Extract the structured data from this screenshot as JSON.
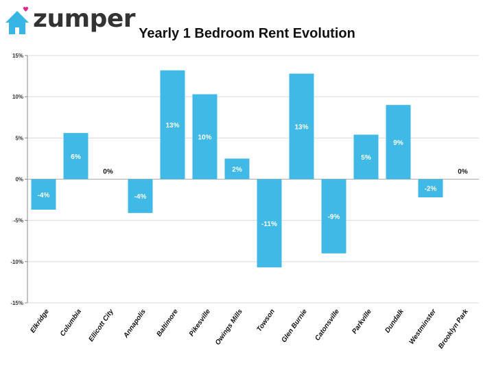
{
  "logo": {
    "text": "zumper",
    "icon": "house-heart-icon",
    "heart_color": "#e0288a",
    "house_color": "#37b6e5"
  },
  "chart_data": {
    "type": "bar",
    "title": "Yearly 1 Bedroom Rent Evolution",
    "xlabel": "",
    "ylabel": "",
    "categories": [
      "Elkridge",
      "Columbia",
      "Ellicott City",
      "Annapolis",
      "Baltimore",
      "Pikesville",
      "Owings Mills",
      "Towson",
      "Glen Burnie",
      "Catonsville",
      "Parkville",
      "Dundalk",
      "Westminster",
      "Brooklyn Park"
    ],
    "values": [
      -3.7,
      5.6,
      0,
      -4.1,
      13.2,
      10.3,
      2.5,
      -10.7,
      12.8,
      -9.0,
      5.4,
      9.0,
      -2.2,
      0
    ],
    "data_labels": [
      "-4%",
      "6%",
      "0%",
      "-4%",
      "13%",
      "10%",
      "2%",
      "-11%",
      "13%",
      "-9%",
      "5%",
      "9%",
      "-2%",
      "0%"
    ],
    "ylim": [
      -15,
      15
    ],
    "yticks": [
      15,
      10,
      5,
      0,
      -5,
      -10,
      -15
    ],
    "ytick_labels": [
      "15%",
      "10%",
      "5%",
      "0%",
      "-5%",
      "-10%",
      "-15%"
    ],
    "grid": true,
    "legend": "none",
    "bar_color": "#41b9e6"
  }
}
